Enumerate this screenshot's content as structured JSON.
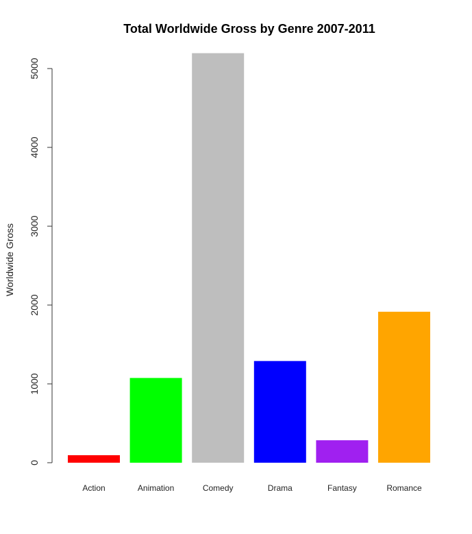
{
  "chart_data": {
    "type": "bar",
    "title": "Total Worldwide Gross by Genre 2007-2011",
    "xlabel": "",
    "ylabel": "Worldwide Gross",
    "categories": [
      "Action",
      "Animation",
      "Comedy",
      "Drama",
      "Fantasy",
      "Romance"
    ],
    "values": [
      95,
      1075,
      5195,
      1290,
      285,
      1915
    ],
    "colors": [
      "#ff0000",
      "#00ff00",
      "#bebebe",
      "#0000ff",
      "#a020f0",
      "#ffa500"
    ],
    "yticks": [
      0,
      1000,
      2000,
      3000,
      4000,
      5000
    ],
    "ylim": [
      0,
      5200
    ],
    "grid": false,
    "legend": "none"
  }
}
